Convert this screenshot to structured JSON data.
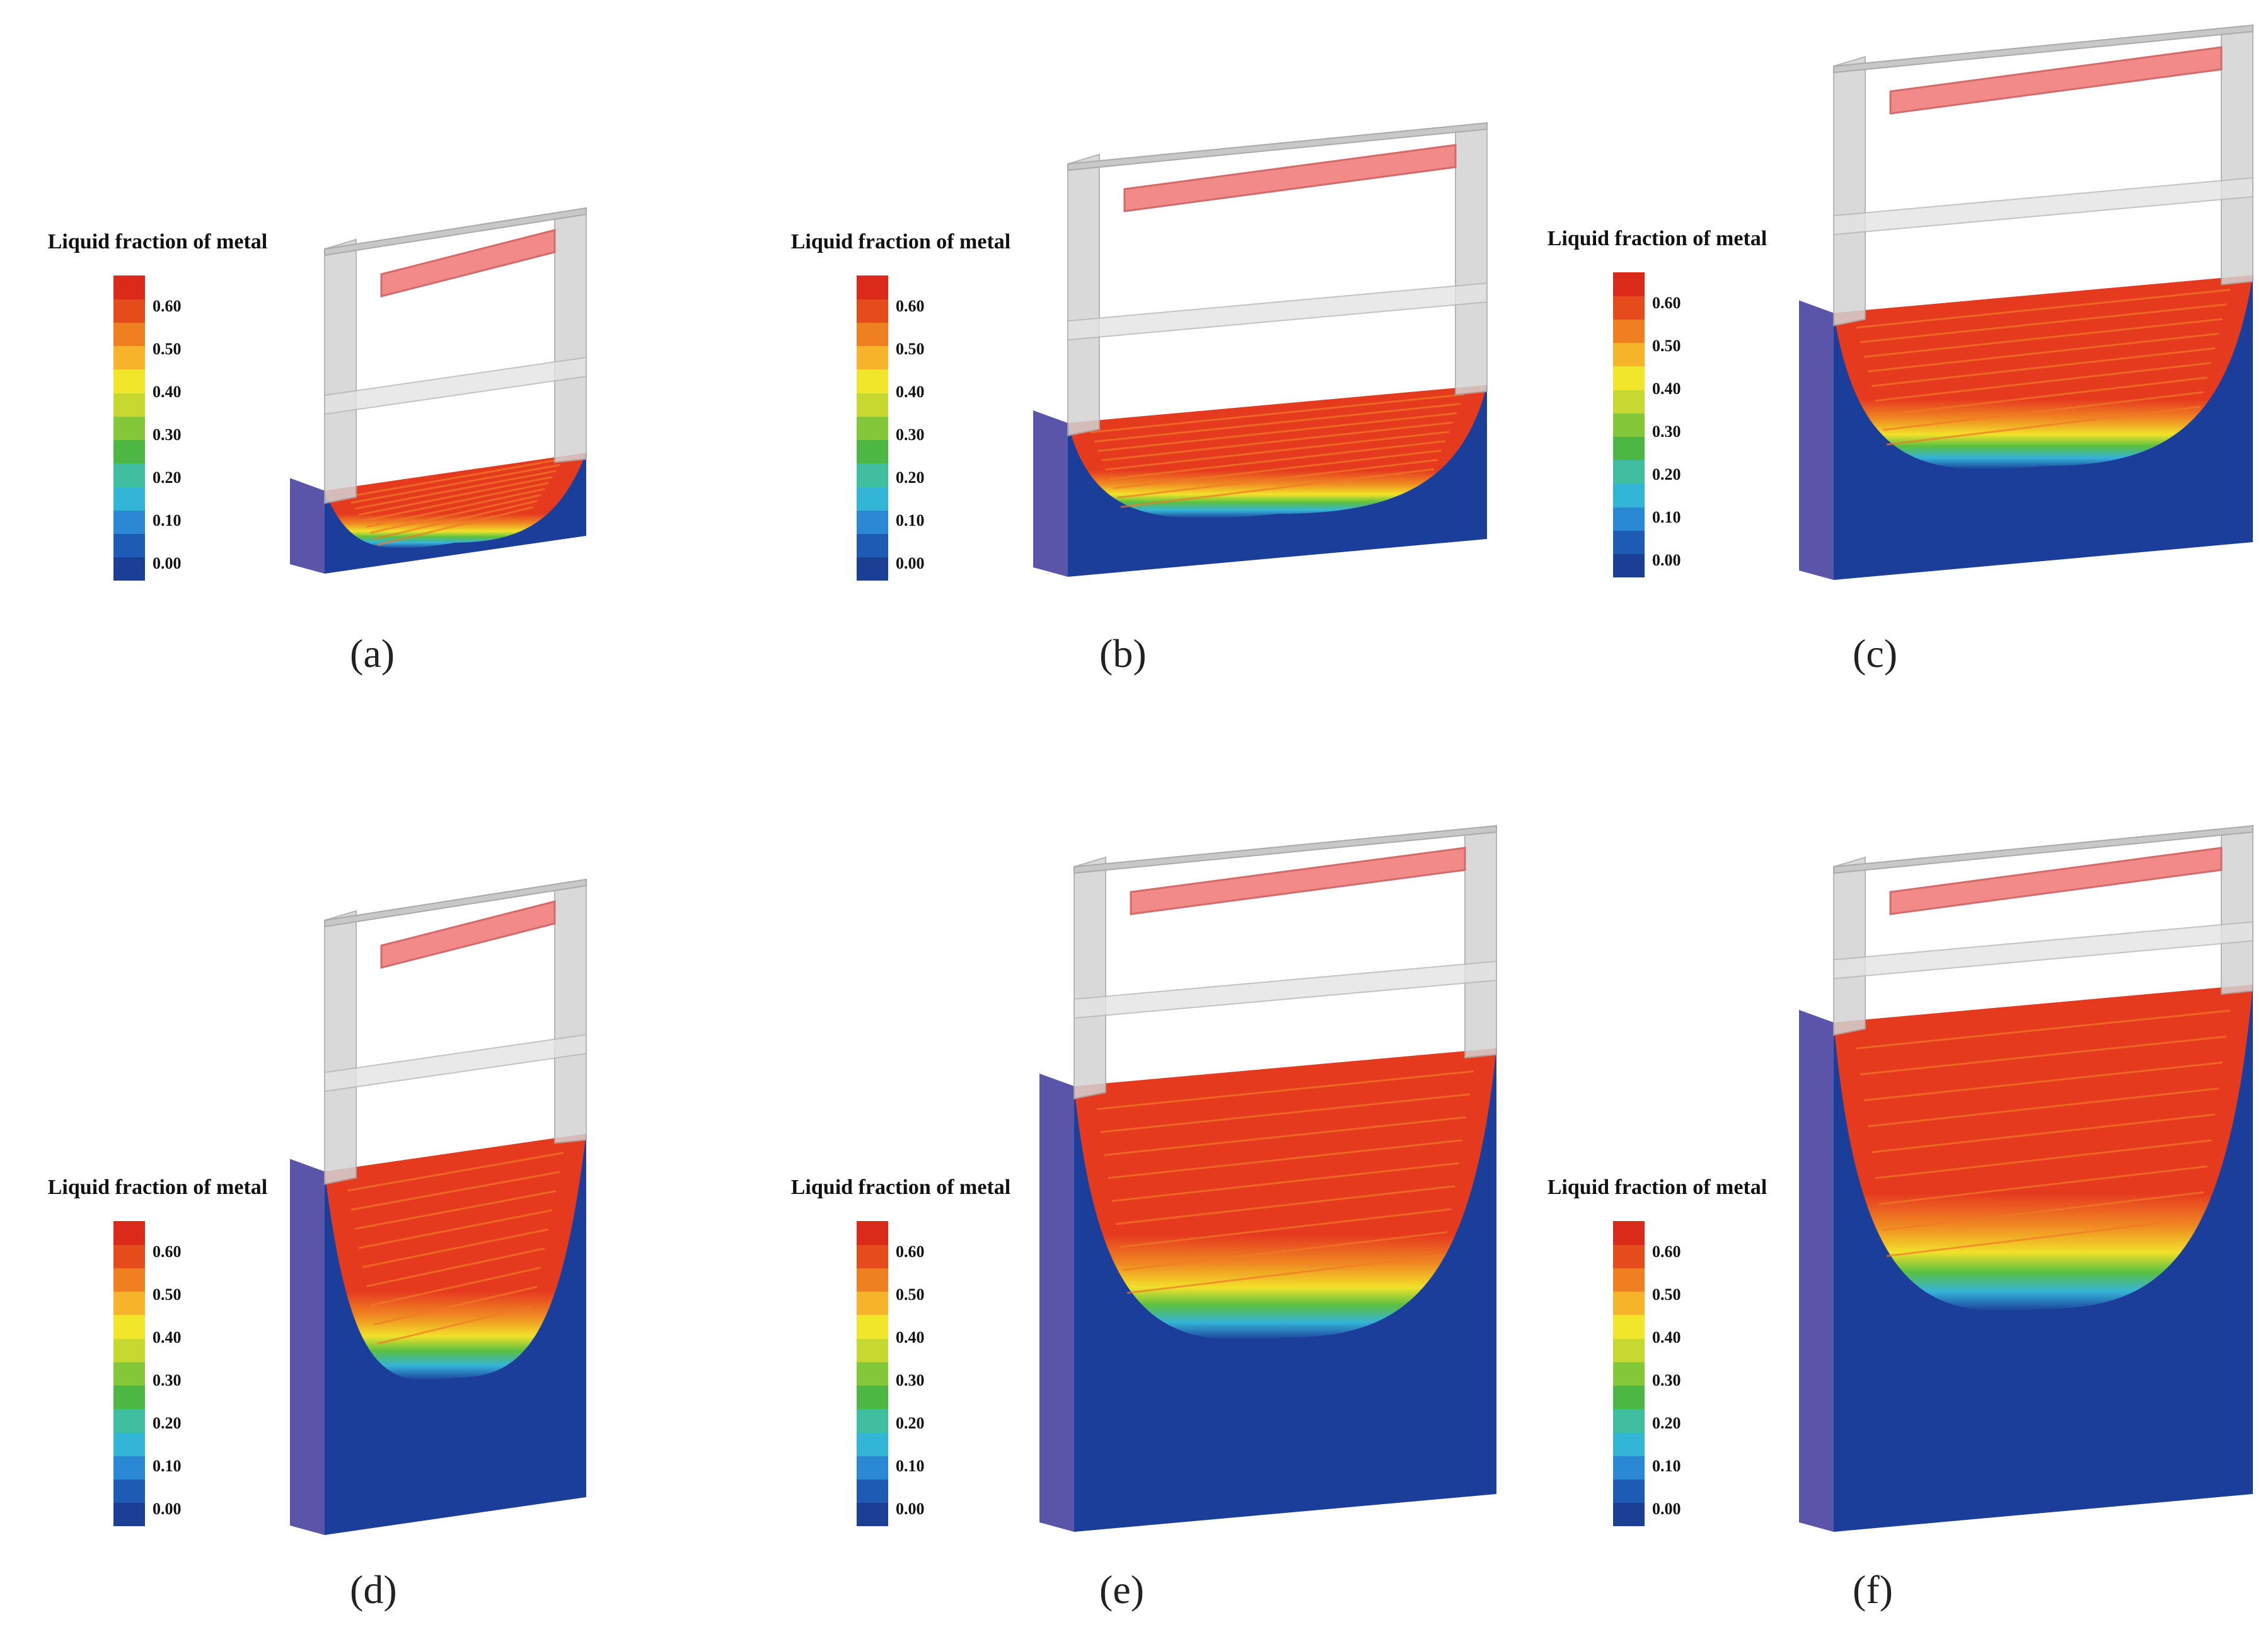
{
  "legend": {
    "title": "Liquid fraction of metal",
    "ticks": [
      "0.60",
      "0.50",
      "0.40",
      "0.30",
      "0.20",
      "0.10",
      "0.00"
    ],
    "colors": [
      "#1b3f94",
      "#1e5bb5",
      "#2a88d4",
      "#33b5d8",
      "#3fbfa0",
      "#4cb843",
      "#84c83a",
      "#c7d930",
      "#f2e62a",
      "#f7b42a",
      "#f07f22",
      "#e64b1c",
      "#dc2a1a"
    ]
  },
  "colors": {
    "solid": "#1a3e99",
    "mushy_low": "#35b3d8",
    "mushy_mid": "#5bc040",
    "mushy_high": "#f2e12a",
    "liquid": "#e63a1f",
    "heater": "#f28a8a",
    "mold_wall": "#d3d3d3"
  },
  "panels": [
    {
      "label": "(a)",
      "melt_fraction": 0.28
    },
    {
      "label": "(b)",
      "melt_fraction": 0.4
    },
    {
      "label": "(c)",
      "melt_fraction": 0.55
    },
    {
      "label": "(d)",
      "melt_fraction": 0.62
    },
    {
      "label": "(e)",
      "melt_fraction": 0.7
    },
    {
      "label": "(f)",
      "melt_fraction": 0.8
    }
  ]
}
